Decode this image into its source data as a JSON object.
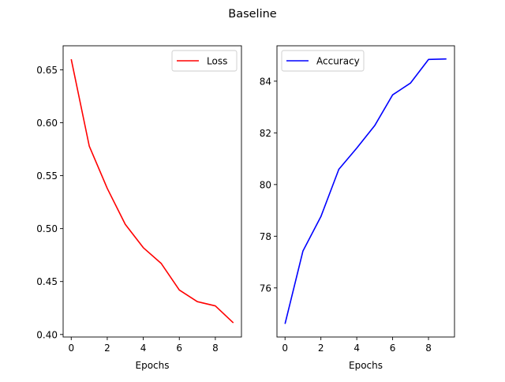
{
  "figure": {
    "suptitle": "Baseline"
  },
  "chart_data": [
    {
      "type": "line",
      "xlabel": "Epochs",
      "ylabel": "",
      "xlim": [
        -0.45,
        9.45
      ],
      "ylim": [
        0.3976,
        0.6727
      ],
      "xticks": [
        0,
        2,
        4,
        6,
        8
      ],
      "xtick_labels": [
        "0",
        "2",
        "4",
        "6",
        "8"
      ],
      "yticks": [
        0.4,
        0.45,
        0.5,
        0.55,
        0.6,
        0.65
      ],
      "ytick_labels": [
        "0.40",
        "0.45",
        "0.50",
        "0.55",
        "0.60",
        "0.65"
      ],
      "grid": false,
      "legend_position": "upper right",
      "series": [
        {
          "name": "Loss",
          "color": "#ff0000",
          "x": [
            0,
            1,
            2,
            3,
            4,
            5,
            6,
            7,
            8,
            9
          ],
          "values": [
            0.66,
            0.578,
            0.538,
            0.504,
            0.482,
            0.467,
            0.442,
            0.431,
            0.427,
            0.411
          ]
        }
      ]
    },
    {
      "type": "line",
      "xlabel": "Epochs",
      "ylabel": "",
      "xlim": [
        -0.45,
        9.45
      ],
      "ylim": [
        74.1,
        85.37
      ],
      "xticks": [
        0,
        2,
        4,
        6,
        8
      ],
      "xtick_labels": [
        "0",
        "2",
        "4",
        "6",
        "8"
      ],
      "yticks": [
        76,
        78,
        80,
        82,
        84
      ],
      "ytick_labels": [
        "76",
        "78",
        "80",
        "82",
        "84"
      ],
      "grid": false,
      "legend_position": "upper left",
      "series": [
        {
          "name": "Accuracy",
          "color": "#0000ff",
          "x": [
            0,
            1,
            2,
            3,
            4,
            5,
            6,
            7,
            8,
            9
          ],
          "values": [
            74.61,
            77.43,
            78.76,
            80.59,
            81.41,
            82.28,
            83.47,
            83.93,
            84.84,
            84.86
          ]
        }
      ]
    }
  ]
}
